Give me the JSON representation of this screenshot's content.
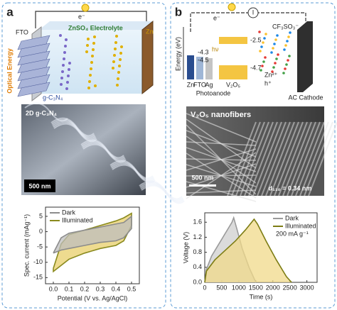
{
  "panel_a": {
    "label": "a",
    "schematic": {
      "electron": "e⁻",
      "fto": "FTO",
      "electrolyte": "ZnSO₄ Electrolyte",
      "zn": "Zn",
      "light": "Optical Energy",
      "material": "g-C₃N₄"
    },
    "micrograph": {
      "title": "2D g-C₃N₄",
      "scale_bar": "500 nm"
    }
  },
  "panel_b": {
    "label": "b",
    "schematic": {
      "current": "I",
      "electron": "e⁻",
      "energy_axis": "Energy (eV)",
      "levels": [
        "-2.5",
        "-4.3",
        "-4.5",
        "-4.7"
      ],
      "photon": "hν",
      "electrodes": [
        "Zn",
        "FTO",
        "Ag"
      ],
      "semiconductor": "V₂O₅",
      "photoanode": "Photoanode",
      "cathode": "AC Cathode",
      "anion": "CF₃SO₃⁻",
      "cation": "Zn²⁺",
      "hole": "h⁺"
    },
    "micrograph": {
      "title": "V₂O₅ nanofibers",
      "scale_bar": "500 nm",
      "spacing": "d₁₁₀ = 0.34 nm"
    }
  },
  "chart_data": [
    {
      "type": "line",
      "x_label": "Potential (V vs. Ag/AgCl)",
      "y_label": "Spec. current (mAg⁻¹)",
      "legend": "upper left",
      "xlim": [
        -0.05,
        0.55
      ],
      "xticks": [
        {
          "value": 0,
          "label": "0.0"
        },
        0.1,
        0.2,
        0.3,
        0.4,
        0.5
      ],
      "ylim": [
        -17,
        8
      ],
      "yticks": [
        -15,
        -10,
        -5,
        0,
        5
      ],
      "series": [
        {
          "name": "Illuminated",
          "color": "#8a8a1e",
          "fill": "#e8cf6a",
          "x": [
            0,
            0.05,
            0.1,
            0.2,
            0.3,
            0.4,
            0.45,
            0.5,
            0.5,
            0.45,
            0.4,
            0.3,
            0.2,
            0.1,
            0.05,
            0,
            0
          ],
          "values": [
            -12,
            -4,
            -1,
            0.5,
            2,
            3.5,
            4.5,
            6,
            2,
            -3,
            -4.5,
            -5.5,
            -7,
            -9,
            -11,
            -13,
            -12
          ]
        },
        {
          "name": "Dark",
          "color": "#8c8c8c",
          "fill": "#bdbdbd",
          "x": [
            0,
            0.05,
            0.1,
            0.2,
            0.3,
            0.4,
            0.45,
            0.5,
            0.5,
            0.45,
            0.4,
            0.3,
            0.2,
            0.1,
            0.05,
            0,
            0
          ],
          "values": [
            -7,
            -2,
            -0.5,
            0.5,
            1.5,
            2.5,
            3,
            5,
            1,
            -2,
            -3,
            -3.5,
            -4.5,
            -5.5,
            -6,
            -7,
            -7
          ]
        }
      ]
    },
    {
      "type": "line",
      "x_label": "Time (s)",
      "y_label": "Voltage (V)",
      "legend": "upper right",
      "annotation": "200 mA g⁻¹",
      "xlim": [
        0,
        3300
      ],
      "xticks": [
        0,
        500,
        1000,
        1500,
        2000,
        2500,
        3000
      ],
      "ylim": [
        0,
        1.85
      ],
      "yticks": [
        {
          "value": 0,
          "label": "0.0"
        },
        0.4,
        0.8,
        1.2,
        1.6
      ],
      "series": [
        {
          "name": "Dark",
          "color": "#9a9a9a",
          "fill": "#cfcfcf",
          "x": [
            0,
            50,
            200,
            400,
            600,
            800,
            850,
            950,
            1100,
            1300,
            1500
          ],
          "values": [
            0,
            0.35,
            0.7,
            1.0,
            1.3,
            1.6,
            1.72,
            1.4,
            0.9,
            0.4,
            0
          ]
        },
        {
          "name": "Illuminated",
          "color": "#7d7d14",
          "fill": "#f0d98a",
          "x": [
            0,
            50,
            300,
            600,
            900,
            1200,
            1450,
            1550,
            1800,
            2100,
            2400,
            2550
          ],
          "values": [
            0,
            0.3,
            0.6,
            0.85,
            1.1,
            1.4,
            1.68,
            1.55,
            1.1,
            0.6,
            0.15,
            0
          ]
        }
      ]
    }
  ]
}
